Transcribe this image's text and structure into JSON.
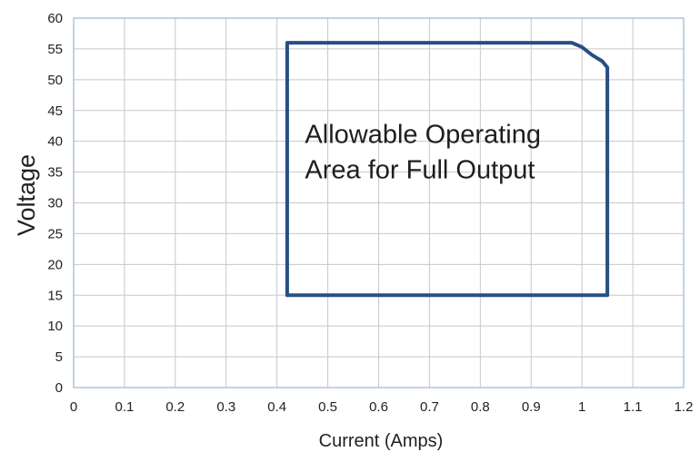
{
  "chart_data": {
    "type": "line",
    "title": "",
    "xlabel": "Current (Amps)",
    "ylabel": "Voltage",
    "xlim": [
      0,
      1.2
    ],
    "ylim": [
      0,
      60
    ],
    "x_ticks": [
      0,
      0.1,
      0.2,
      0.3,
      0.4,
      0.5,
      0.6,
      0.7,
      0.8,
      0.9,
      1,
      1.1,
      1.2
    ],
    "y_ticks": [
      0,
      5,
      10,
      15,
      20,
      25,
      30,
      35,
      40,
      45,
      50,
      55,
      60
    ],
    "x_tick_labels": [
      "0",
      "0.1",
      "0.2",
      "0.3",
      "0.4",
      "0.5",
      "0.6",
      "0.7",
      "0.8",
      "0.9",
      "1",
      "1.1",
      "1.2"
    ],
    "y_tick_labels": [
      "0",
      "5",
      "10",
      "15",
      "20",
      "25",
      "30",
      "35",
      "40",
      "45",
      "50",
      "55",
      "60"
    ],
    "grid": true,
    "series": [
      {
        "color": "#284e86",
        "closed": true,
        "points": [
          [
            0.42,
            15
          ],
          [
            0.42,
            56
          ],
          [
            0.98,
            56
          ],
          [
            1.0,
            55.3
          ],
          [
            1.02,
            54
          ],
          [
            1.04,
            53
          ],
          [
            1.05,
            52
          ],
          [
            1.05,
            15
          ],
          [
            0.42,
            15
          ]
        ]
      }
    ],
    "annotation": {
      "lines": [
        "Allowable Operating",
        "Area for Full Output"
      ],
      "x": 0.455,
      "y": 39.7
    }
  }
}
